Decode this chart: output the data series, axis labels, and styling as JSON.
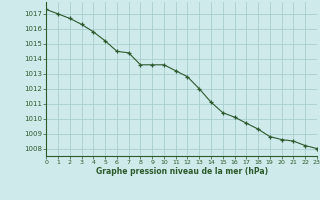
{
  "x": [
    0,
    1,
    2,
    3,
    4,
    5,
    6,
    7,
    8,
    9,
    10,
    11,
    12,
    13,
    14,
    15,
    16,
    17,
    18,
    19,
    20,
    21,
    22,
    23
  ],
  "y": [
    1017.3,
    1017.0,
    1016.7,
    1016.3,
    1015.8,
    1015.2,
    1014.5,
    1014.4,
    1013.6,
    1013.6,
    1013.6,
    1013.2,
    1012.8,
    1012.0,
    1011.1,
    1010.4,
    1010.1,
    1009.7,
    1009.3,
    1008.8,
    1008.6,
    1008.5,
    1008.2,
    1008.0
  ],
  "bg_color": "#ceeaea",
  "line_color": "#2d5a2d",
  "marker_color": "#2d5a2d",
  "grid_color": "#aacece",
  "axis_label_color": "#2d5a2d",
  "tick_label_color": "#2d5a2d",
  "xlabel": "Graphe pression niveau de la mer (hPa)",
  "ylim_min": 1007.5,
  "ylim_max": 1017.8,
  "yticks": [
    1008,
    1009,
    1010,
    1011,
    1012,
    1013,
    1014,
    1015,
    1016,
    1017
  ],
  "xlim_min": 0,
  "xlim_max": 23
}
